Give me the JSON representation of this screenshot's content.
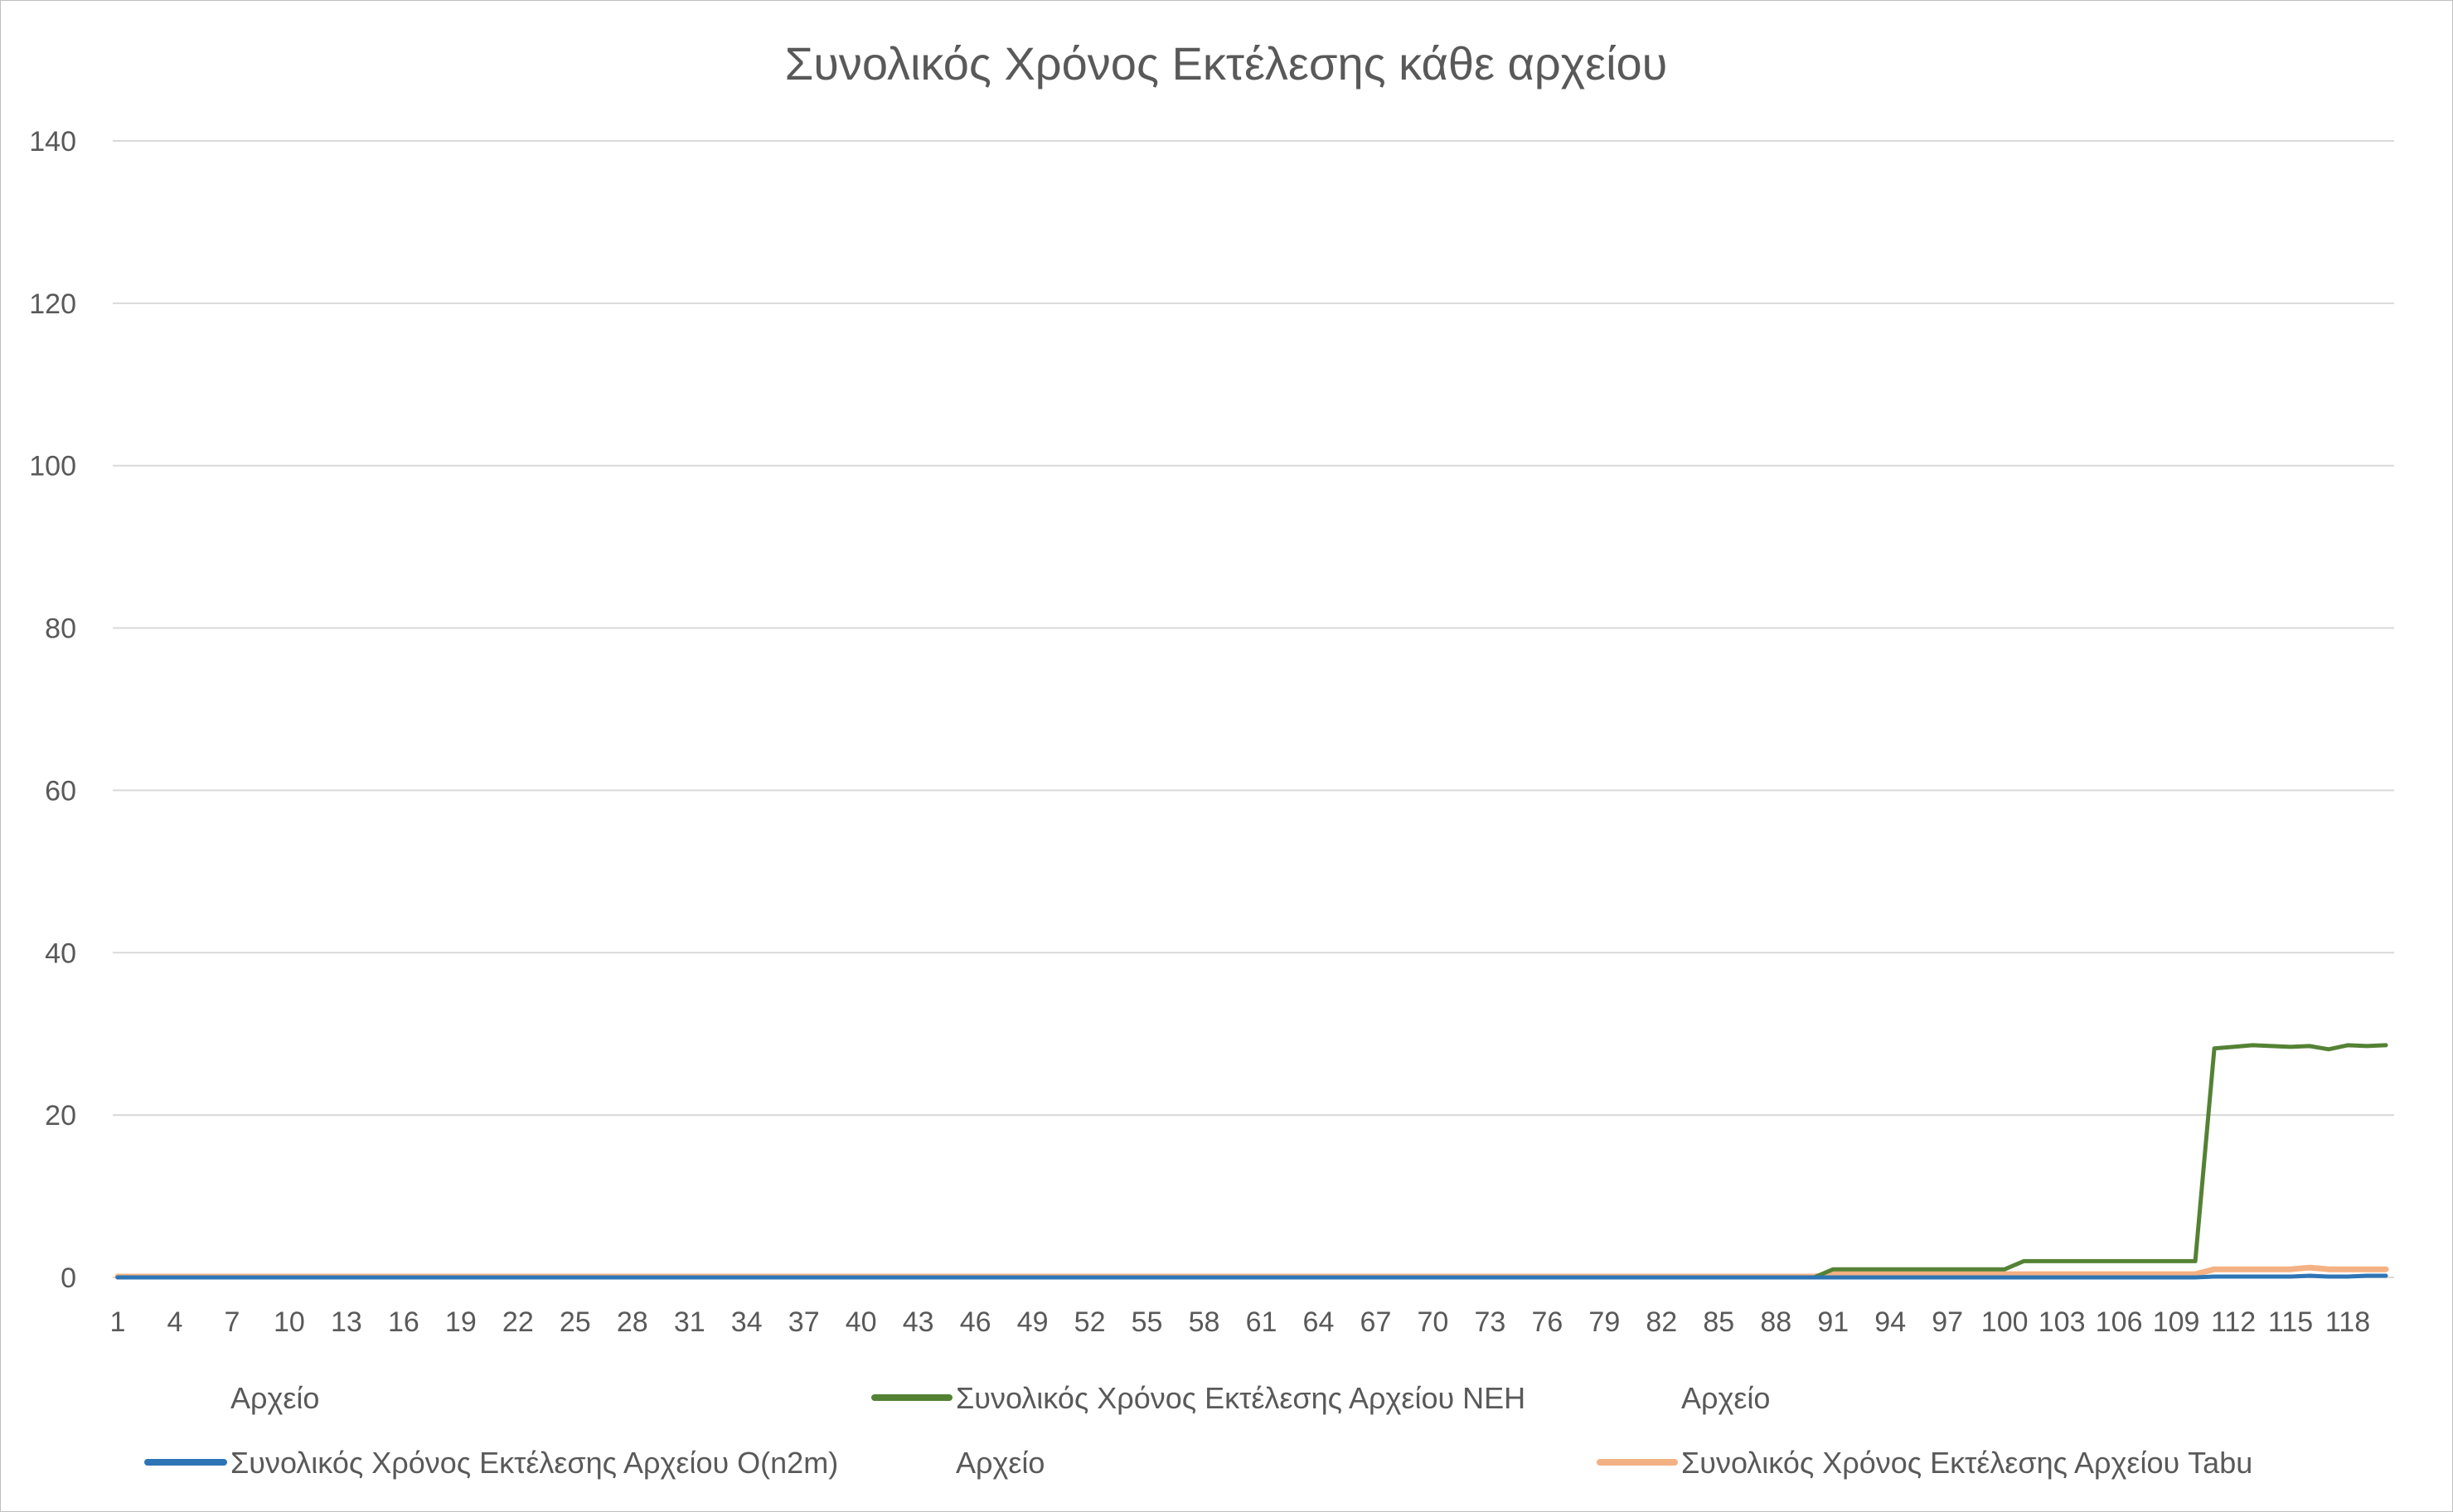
{
  "chart_data": {
    "type": "line",
    "title": "Συνολικός Χρόνος Εκτέλεσης κάθε αρχείου",
    "xlabel": "",
    "ylabel": "",
    "ylim": [
      0,
      140
    ],
    "yticks": [
      0,
      20,
      40,
      60,
      80,
      100,
      120,
      140
    ],
    "x_range": [
      1,
      120
    ],
    "xtick_labels": [
      "1",
      "4",
      "7",
      "10",
      "13",
      "16",
      "19",
      "22",
      "25",
      "28",
      "31",
      "34",
      "37",
      "40",
      "43",
      "46",
      "49",
      "52",
      "55",
      "58",
      "61",
      "64",
      "67",
      "70",
      "73",
      "76",
      "79",
      "82",
      "85",
      "88",
      "91",
      "94",
      "97",
      "100",
      "103",
      "106",
      "109",
      "112",
      "115",
      "118"
    ],
    "grid": true,
    "legend_position": "bottom",
    "legend_entries": [
      {
        "label": "Αρχείο",
        "color": null
      },
      {
        "label": "Συνολικός Χρόνος Εκτέλεσης Αρχείου NEH",
        "color": "#548235"
      },
      {
        "label": "Αρχείο",
        "color": null
      },
      {
        "label": "Συνολικός Χρόνος Εκτέλεσης Αρχείου O(n2m)",
        "color": "#2e75b6"
      },
      {
        "label": "Αρχείο",
        "color": null
      },
      {
        "label": "Συνολικός Χρόνος Εκτέλεσης Αρχείου Tabu",
        "color": "#f4b183"
      }
    ],
    "series": [
      {
        "name": "Συνολικός Χρόνος Εκτέλεσης Αρχείου NEH",
        "color": "#548235",
        "segments": [
          {
            "x": [
              1,
              90
            ],
            "y": 0
          },
          {
            "x": [
              91,
              100
            ],
            "y": 1
          },
          {
            "x": [
              101,
              110
            ],
            "y": 2
          }
        ],
        "points": [
          [
            111,
            28.2
          ],
          [
            112,
            28.4
          ],
          [
            113,
            28.6
          ],
          [
            114,
            28.5
          ],
          [
            115,
            28.4
          ],
          [
            116,
            28.5
          ],
          [
            117,
            28.1
          ],
          [
            118,
            28.6
          ],
          [
            119,
            28.5
          ],
          [
            120,
            28.6
          ]
        ]
      },
      {
        "name": "Συνολικός Χρόνος Εκτέλεσης Αρχείου O(n2m)",
        "color": "#2e75b6",
        "segments": [
          {
            "x": [
              1,
              110
            ],
            "y": 0
          }
        ],
        "points": [
          [
            111,
            0.1
          ],
          [
            112,
            0.1
          ],
          [
            113,
            0.1
          ],
          [
            114,
            0.1
          ],
          [
            115,
            0.1
          ],
          [
            116,
            0.2
          ],
          [
            117,
            0.1
          ],
          [
            118,
            0.1
          ],
          [
            119,
            0.2
          ],
          [
            120,
            0.2
          ]
        ]
      },
      {
        "name": "Συνολικός Χρόνος Εκτέλεσης Αρχείου Tabu",
        "color": "#f4b183",
        "segments": [
          {
            "x": [
              1,
              90
            ],
            "y": 0.1
          },
          {
            "x": [
              91,
              110
            ],
            "y": 0.4
          }
        ],
        "points": [
          [
            111,
            1.0
          ],
          [
            112,
            1.0
          ],
          [
            113,
            1.0
          ],
          [
            114,
            1.0
          ],
          [
            115,
            1.0
          ],
          [
            116,
            1.2
          ],
          [
            117,
            1.0
          ],
          [
            118,
            1.0
          ],
          [
            119,
            1.0
          ],
          [
            120,
            1.0
          ]
        ]
      }
    ]
  }
}
